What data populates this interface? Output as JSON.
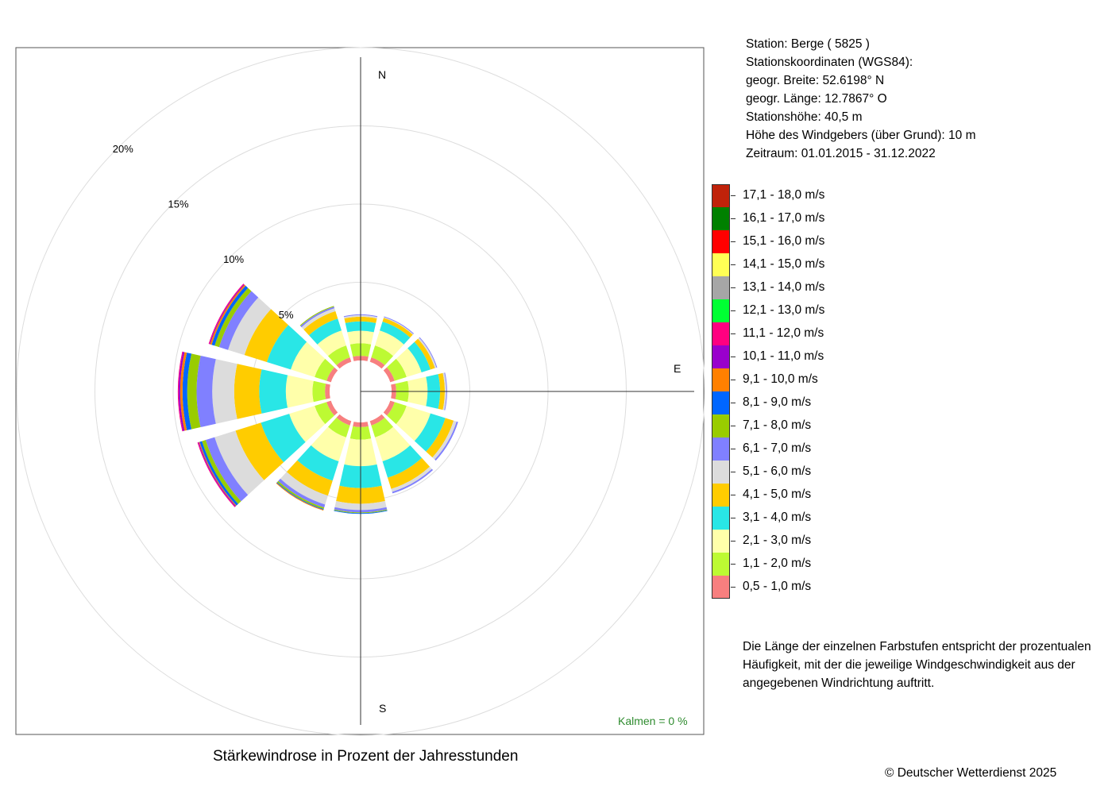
{
  "station_info": {
    "station": "Station:  Berge  ( 5825 )",
    "coords_heading": "Stationskoordinaten (WGS84):",
    "latitude": "geogr. Breite: 52.6198° N",
    "longitude": "geogr. Länge: 12.7867° O",
    "elevation": "Stationshöhe: 40,5 m",
    "sensor_height": "Höhe des Windgebers (über Grund): 10 m",
    "period": "Zeitraum: 01.01.2015 - 31.12.2022"
  },
  "note": {
    "line1": "Die Länge der einzelnen Farbstufen entspricht der prozentualen",
    "line2": "Häufigkeit, mit der die jeweilige Windgeschwindigkeit aus der",
    "line3": "angegebenen Windrichtung auftritt."
  },
  "copyright": "© Deutscher Wetterdienst  2025",
  "chart_data": {
    "type": "windrose",
    "title": "Stärkewindrose in Prozent der Jahresstunden",
    "calm_label": "Kalmen  =  0 %",
    "direction_labels": {
      "n": "N",
      "e": "E",
      "s": "S"
    },
    "ring_labels": [
      "5%",
      "10%",
      "15%",
      "20%"
    ],
    "ring_values": [
      5,
      10,
      15,
      20
    ],
    "legend_title_position": "right",
    "speed_classes": [
      {
        "label": "0,5 - 1,0 m/s",
        "color": "#f77f7f"
      },
      {
        "label": "1,1 - 2,0 m/s",
        "color": "#bdfa33"
      },
      {
        "label": "2,1 - 3,0 m/s",
        "color": "#ffffaa"
      },
      {
        "label": "3,1 - 4,0 m/s",
        "color": "#29e6e6"
      },
      {
        "label": "4,1 - 5,0 m/s",
        "color": "#ffcc00"
      },
      {
        "label": "5,1 - 6,0 m/s",
        "color": "#dcdcdc"
      },
      {
        "label": "6,1 - 7,0 m/s",
        "color": "#8080ff"
      },
      {
        "label": "7,1 - 8,0 m/s",
        "color": "#99cc00"
      },
      {
        "label": "8,1 - 9,0 m/s",
        "color": "#0066ff"
      },
      {
        "label": "9,1 - 10,0 m/s",
        "color": "#ff8000"
      },
      {
        "label": "10,1 - 11,0 m/s",
        "color": "#9900cc"
      },
      {
        "label": "11,1 - 12,0 m/s",
        "color": "#ff0080"
      },
      {
        "label": "12,1 - 13,0 m/s",
        "color": "#00ff33"
      },
      {
        "label": "13,1 - 14,0 m/s",
        "color": "#a6a6a6"
      },
      {
        "label": "14,1 - 15,0 m/s",
        "color": "#ffff55"
      },
      {
        "label": "15,1 - 16,0 m/s",
        "color": "#ff0000"
      },
      {
        "label": "16,1 - 17,0 m/s",
        "color": "#008000"
      },
      {
        "label": "17,1 - 18,0 m/s",
        "color": "#c0220a"
      }
    ],
    "sector_width_deg": 30,
    "sectors": [
      {
        "direction_deg": 0,
        "values": [
          0.3,
          0.8,
          0.8,
          0.6,
          0.3,
          0.1,
          0.05
        ]
      },
      {
        "direction_deg": 30,
        "values": [
          0.3,
          0.8,
          1.0,
          0.6,
          0.25,
          0.05,
          0.05
        ]
      },
      {
        "direction_deg": 60,
        "values": [
          0.3,
          0.8,
          1.0,
          0.6,
          0.3,
          0.1,
          0.05
        ]
      },
      {
        "direction_deg": 90,
        "values": [
          0.3,
          0.8,
          1.2,
          0.8,
          0.3,
          0.1,
          0.05
        ]
      },
      {
        "direction_deg": 120,
        "values": [
          0.3,
          0.8,
          1.6,
          1.0,
          0.55,
          0.2,
          0.1
        ]
      },
      {
        "direction_deg": 150,
        "values": [
          0.3,
          0.8,
          1.6,
          1.1,
          0.75,
          0.2,
          0.1
        ]
      },
      {
        "direction_deg": 180,
        "values": [
          0.3,
          0.8,
          1.7,
          1.4,
          1.0,
          0.4,
          0.15,
          0.05,
          0.05
        ]
      },
      {
        "direction_deg": 210,
        "values": [
          0.3,
          0.8,
          1.6,
          1.3,
          1.0,
          0.6,
          0.2,
          0.1,
          0.05,
          0.05
        ]
      },
      {
        "direction_deg": 240,
        "values": [
          0.3,
          0.8,
          1.7,
          1.9,
          1.7,
          1.4,
          0.6,
          0.25,
          0.15,
          0.05,
          0.05,
          0.05
        ]
      },
      {
        "direction_deg": 270,
        "values": [
          0.3,
          0.8,
          1.7,
          1.7,
          1.6,
          1.4,
          1.0,
          0.6,
          0.3,
          0.15,
          0.1,
          0.05
        ]
      },
      {
        "direction_deg": 300,
        "values": [
          0.3,
          0.8,
          1.6,
          1.6,
          1.5,
          1.1,
          0.6,
          0.3,
          0.2,
          0.1,
          0.05,
          0.05
        ]
      },
      {
        "direction_deg": 330,
        "values": [
          0.3,
          0.8,
          1.0,
          0.8,
          0.5,
          0.2,
          0.1,
          0.05
        ]
      }
    ]
  }
}
